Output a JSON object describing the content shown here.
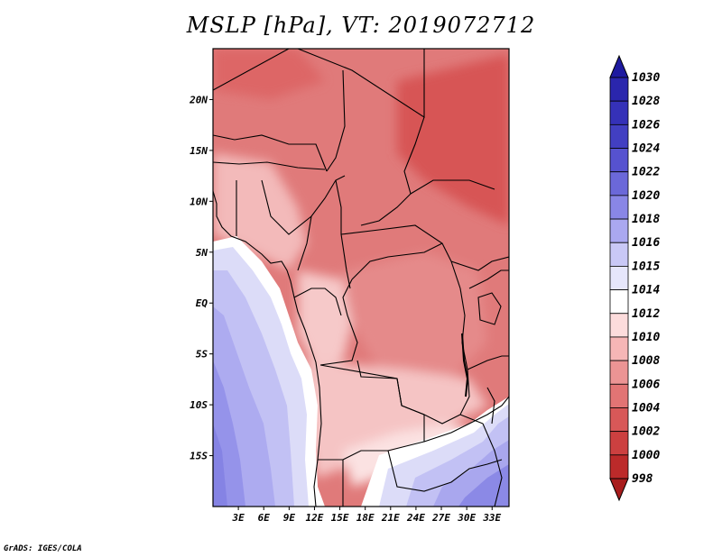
{
  "title": "MSLP [hPa], VT: 2019072712",
  "credit": "GrADS: IGES/COLA",
  "map": {
    "variable": "MSLP",
    "units": "hPa",
    "valid_time": "2019072712",
    "lon_range": [
      0,
      35
    ],
    "lat_range": [
      -20,
      25
    ],
    "lat_labels": [
      {
        "lat": 20,
        "text": "20N"
      },
      {
        "lat": 15,
        "text": "15N"
      },
      {
        "lat": 10,
        "text": "10N"
      },
      {
        "lat": 5,
        "text": "5N"
      },
      {
        "lat": 0,
        "text": "EQ"
      },
      {
        "lat": -5,
        "text": "5S"
      },
      {
        "lat": -10,
        "text": "10S"
      },
      {
        "lat": -15,
        "text": "15S"
      }
    ],
    "lon_labels": [
      {
        "lon": 3,
        "text": "3E"
      },
      {
        "lon": 6,
        "text": "6E"
      },
      {
        "lon": 9,
        "text": "9E"
      },
      {
        "lon": 12,
        "text": "12E"
      },
      {
        "lon": 15,
        "text": "15E"
      },
      {
        "lon": 18,
        "text": "18E"
      },
      {
        "lon": 21,
        "text": "21E"
      },
      {
        "lon": 24,
        "text": "24E"
      },
      {
        "lon": 27,
        "text": "27E"
      },
      {
        "lon": 30,
        "text": "30E"
      },
      {
        "lon": 33,
        "text": "33E"
      }
    ]
  },
  "colorbar": {
    "labels": [
      "1030",
      "1028",
      "1026",
      "1024",
      "1022",
      "1020",
      "1018",
      "1016",
      "1015",
      "1014",
      "1012",
      "1010",
      "1008",
      "1006",
      "1004",
      "1002",
      "1000",
      "998"
    ],
    "colors": [
      "#1e1aa0",
      "#2a26ad",
      "#3531b8",
      "#423fc2",
      "#5652cf",
      "#6b68d9",
      "#8986e6",
      "#aaa8f0",
      "#c9c8f6",
      "#e6e6fb",
      "#ffffff",
      "#fcdcdc",
      "#f6b6b6",
      "#ec9494",
      "#e27474",
      "#d85858",
      "#cc4040",
      "#bc2a2a",
      "#a81d1d"
    ]
  }
}
